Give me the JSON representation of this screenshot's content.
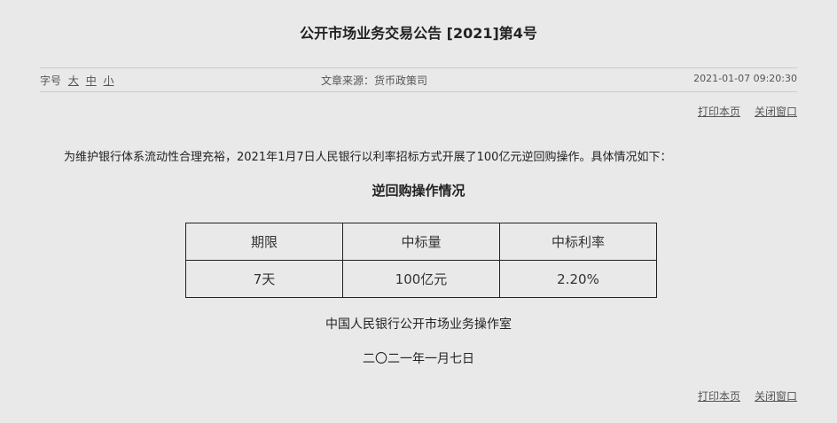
{
  "title": "公开市场业务交易公告 [2021]第4号",
  "meta": {
    "font_size_label": "字号",
    "font_sizes": [
      "大",
      "中",
      "小"
    ],
    "source": "文章来源：货币政策司",
    "datetime": "2021-01-07 09:20:30"
  },
  "links": {
    "print": "打印本页",
    "close": "关闭窗口"
  },
  "paragraph": "为维护银行体系流动性合理充裕，2021年1月7日人民银行以利率招标方式开展了100亿元逆回购操作。具体情况如下：",
  "table": {
    "caption": "逆回购操作情况",
    "headers": [
      "期限",
      "中标量",
      "中标利率"
    ],
    "rows": [
      [
        "7天",
        "100亿元",
        "2.20%"
      ]
    ]
  },
  "signature": "中国人民银行公开市场业务操作室",
  "date": "二〇二一年一月七日"
}
